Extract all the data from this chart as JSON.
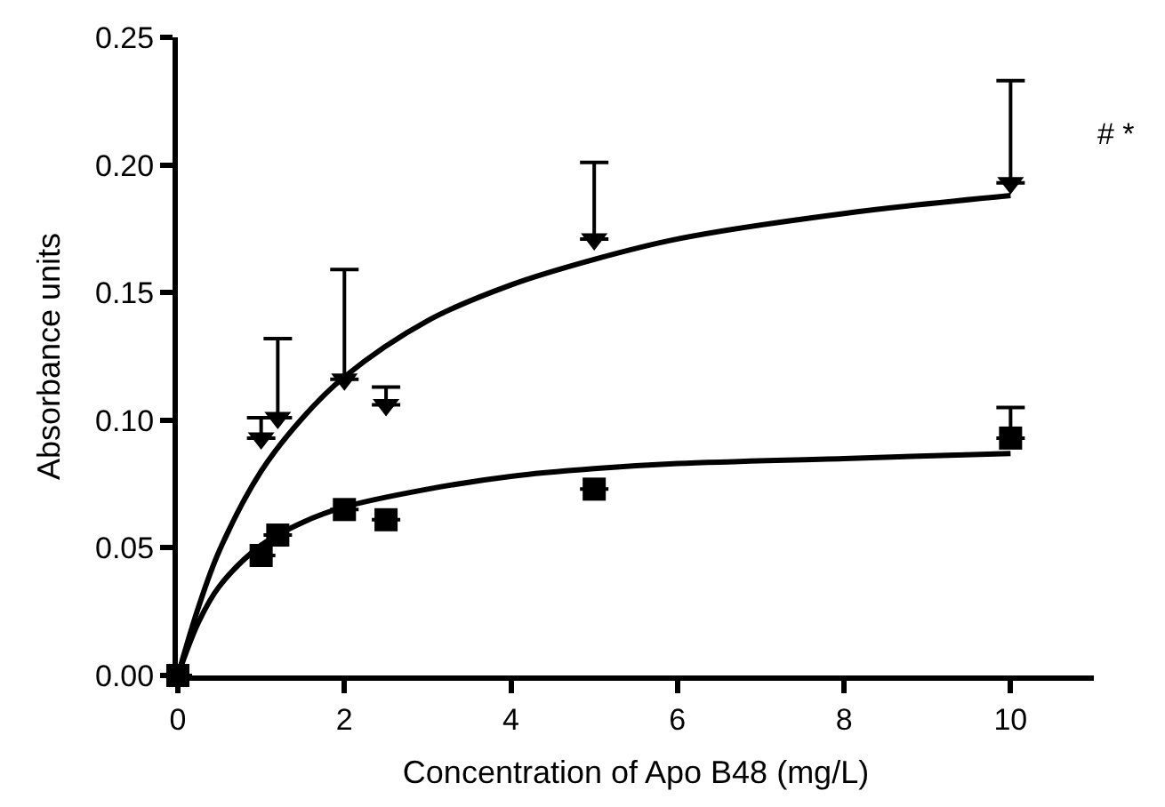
{
  "chart_data": {
    "type": "scatter",
    "xlabel": "Concentration of Apo B48 (mg/L)",
    "ylabel": "Absorbance units",
    "xlim": [
      0,
      11
    ],
    "xticks": [
      0,
      2,
      4,
      6,
      8,
      10
    ],
    "ylim": [
      0,
      0.25
    ],
    "yticks": [
      {
        "value": 0,
        "label": "0.00"
      },
      {
        "value": 0.05,
        "label": "0.05"
      },
      {
        "value": 0.1,
        "label": "0.10"
      },
      {
        "value": 0.15,
        "label": "0.15"
      },
      {
        "value": 0.2,
        "label": "0.20"
      },
      {
        "value": 0.25,
        "label": "0.25"
      }
    ],
    "annotations": [
      "# *"
    ],
    "series": [
      {
        "marker": "triangle",
        "color": "#000000",
        "x": [
          1,
          1.2,
          2,
          2.5,
          5,
          10
        ],
        "values": [
          0.093,
          0.101,
          0.116,
          0.106,
          0.171,
          0.193
        ],
        "errors": [
          [
            0.093,
            0.101
          ],
          [
            0.101,
            0.132
          ],
          [
            0.116,
            0.159
          ],
          [
            0.106,
            0.113
          ],
          [
            0.171,
            0.201
          ],
          [
            0.193,
            0.233
          ]
        ]
      },
      {
        "marker": "square",
        "color": "#000000",
        "x": [
          0,
          1,
          1.2,
          2,
          2.5,
          5,
          10
        ],
        "values": [
          0,
          0.047,
          0.055,
          0.065,
          0.061,
          0.073,
          0.093
        ],
        "errors": [
          null,
          null,
          null,
          null,
          null,
          null,
          [
            0.093,
            0.105
          ]
        ]
      },
      {
        "type": "line",
        "marker": "none",
        "line_style": "solid",
        "color": "#000000",
        "x": [
          0,
          0.25,
          0.5,
          1,
          1.5,
          2,
          3,
          4,
          5,
          6,
          8,
          10
        ],
        "values": [
          0,
          0.027,
          0.049,
          0.08,
          0.101,
          0.117,
          0.139,
          0.153,
          0.163,
          0.171,
          0.181,
          0.188
        ]
      },
      {
        "type": "line",
        "marker": "none",
        "line_style": "solid",
        "color": "#000000",
        "x": [
          0,
          0.25,
          0.5,
          1,
          1.5,
          2,
          3,
          4,
          5,
          6,
          8,
          10
        ],
        "values": [
          0,
          0.021,
          0.035,
          0.051,
          0.06,
          0.066,
          0.073,
          0.078,
          0.081,
          0.083,
          0.085,
          0.087
        ]
      }
    ]
  }
}
